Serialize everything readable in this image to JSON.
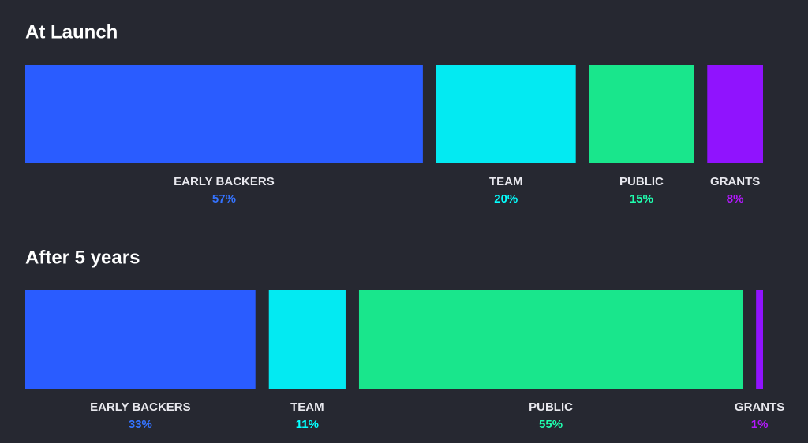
{
  "chart_data": [
    {
      "type": "stacked-bar",
      "title": "At Launch",
      "categories": [
        "EARLY BACKERS",
        "TEAM",
        "PUBLIC",
        "GRANTS"
      ],
      "values": [
        57,
        20,
        15,
        8
      ],
      "value_labels": [
        "57%",
        "20%",
        "15%",
        "8%"
      ],
      "colors": [
        "#2a5cff",
        "#03eaf2",
        "#19e68c",
        "#9013fe"
      ]
    },
    {
      "type": "stacked-bar",
      "title": "After 5 years",
      "categories": [
        "EARLY BACKERS",
        "TEAM",
        "PUBLIC",
        "GRANTS"
      ],
      "values": [
        33,
        11,
        55,
        1
      ],
      "value_labels": [
        "33%",
        "11%",
        "55%",
        "1%"
      ],
      "colors": [
        "#2a5cff",
        "#03eaf2",
        "#19e68c",
        "#9013fe"
      ]
    }
  ]
}
